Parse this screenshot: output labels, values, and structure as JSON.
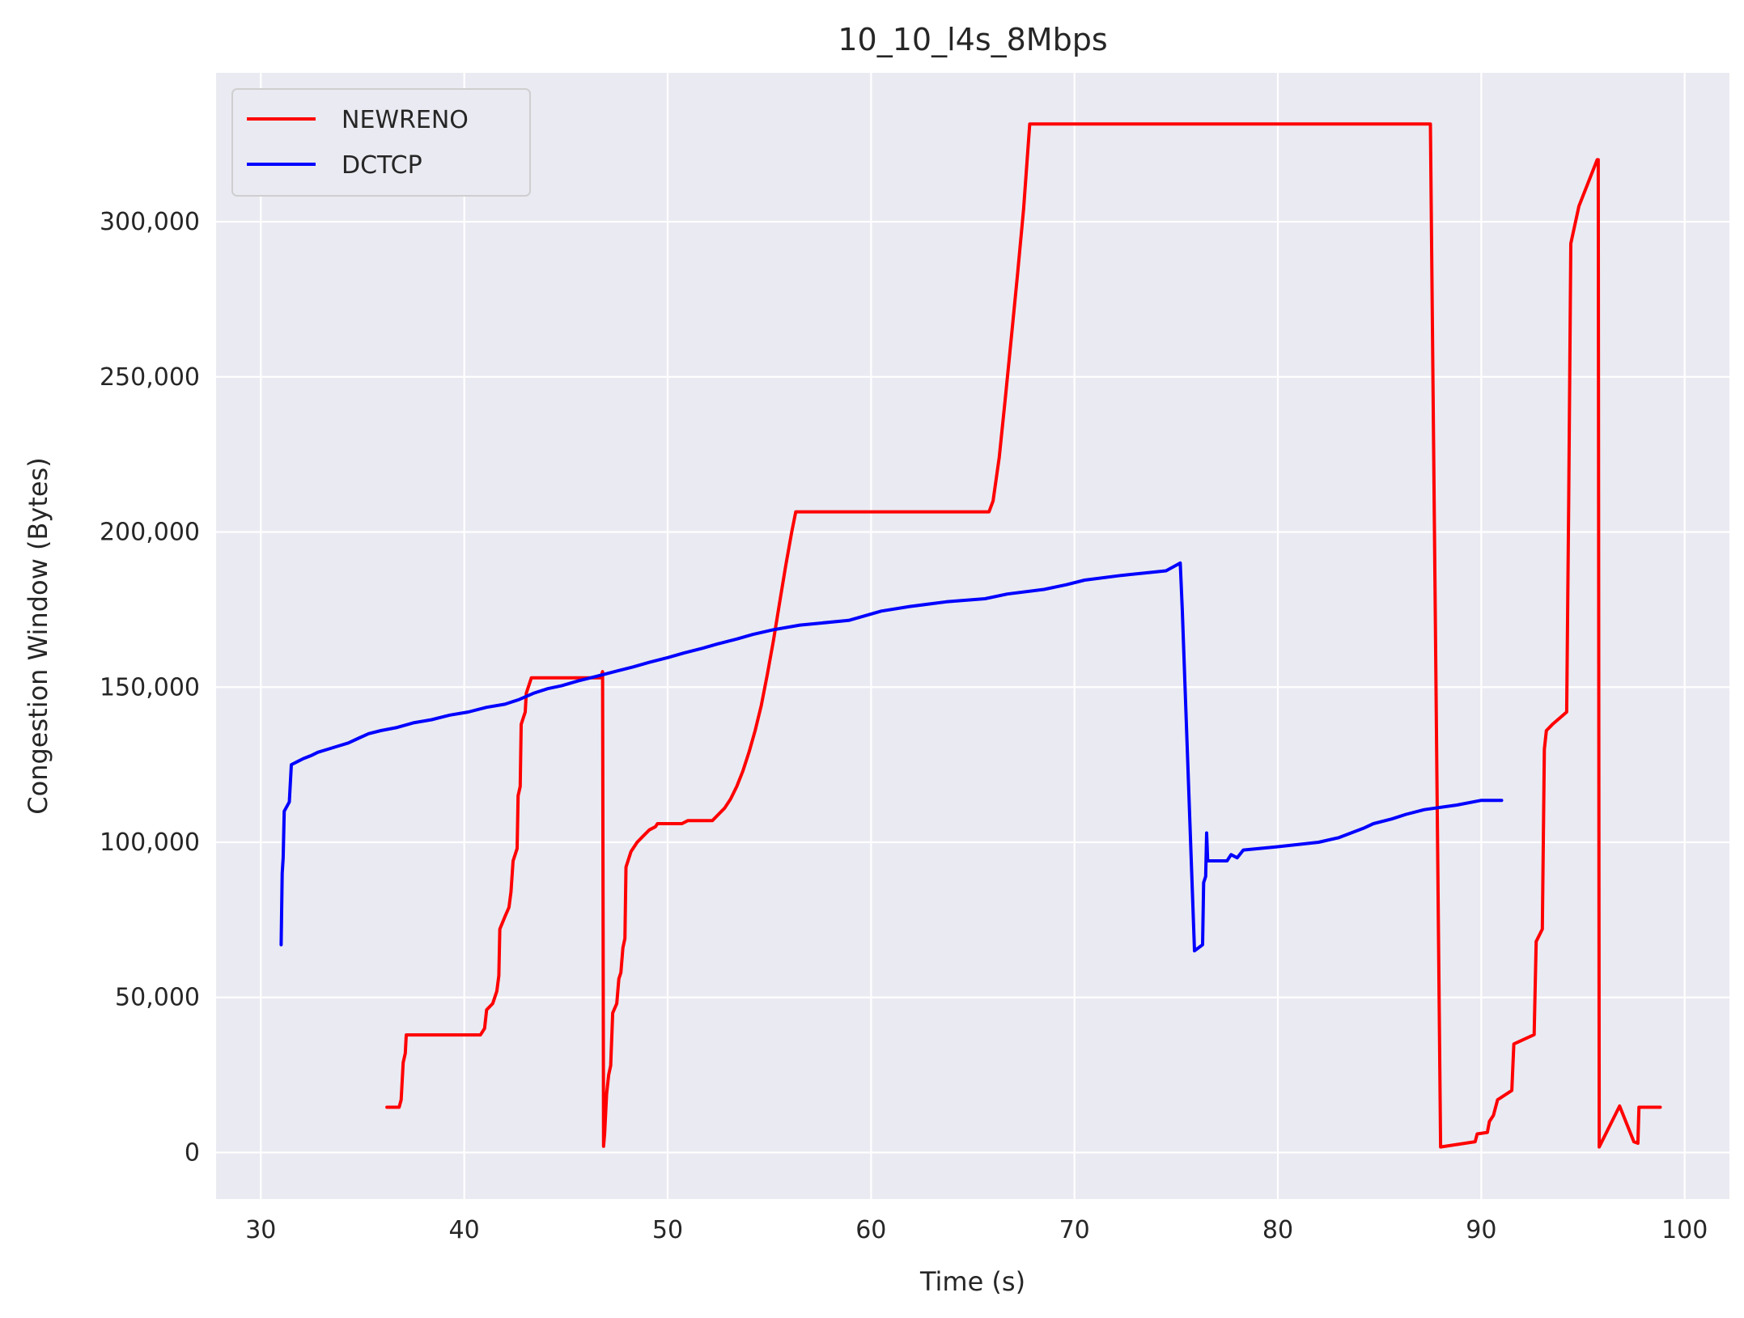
{
  "chart_data": {
    "type": "line",
    "title": "10_10_l4s_8Mbps",
    "xlabel": "Time (s)",
    "ylabel": "Congestion Window (Bytes)",
    "xlim": [
      27.8,
      102.2
    ],
    "ylim": [
      -15000,
      348000
    ],
    "xticks": [
      30,
      40,
      50,
      60,
      70,
      80,
      90,
      100
    ],
    "xtick_labels": [
      "30",
      "40",
      "50",
      "60",
      "70",
      "80",
      "90",
      "100"
    ],
    "yticks": [
      0,
      50000,
      100000,
      150000,
      200000,
      250000,
      300000
    ],
    "ytick_labels": [
      "0",
      "50,000",
      "100,000",
      "150,000",
      "200,000",
      "250,000",
      "300,000"
    ],
    "grid": true,
    "legend": "top-left",
    "background": "#eaeaf2",
    "series": [
      {
        "name": "NEWRENO",
        "color": "#ff0000",
        "points": [
          [
            36.2,
            14600
          ],
          [
            36.8,
            14600
          ],
          [
            36.9,
            17000
          ],
          [
            37.0,
            29000
          ],
          [
            37.1,
            32000
          ],
          [
            37.15,
            37900
          ],
          [
            40.8,
            37900
          ],
          [
            41.0,
            40000
          ],
          [
            41.1,
            46000
          ],
          [
            41.4,
            48000
          ],
          [
            41.6,
            52000
          ],
          [
            41.7,
            57000
          ],
          [
            41.75,
            72000
          ],
          [
            42.0,
            76000
          ],
          [
            42.2,
            79000
          ],
          [
            42.3,
            84000
          ],
          [
            42.4,
            94000
          ],
          [
            42.6,
            98000
          ],
          [
            42.65,
            115000
          ],
          [
            42.75,
            118000
          ],
          [
            42.8,
            138000
          ],
          [
            43.0,
            142000
          ],
          [
            43.05,
            148000
          ],
          [
            43.3,
            153000
          ],
          [
            46.7,
            153000
          ],
          [
            46.8,
            155000
          ],
          [
            46.85,
            2000
          ],
          [
            46.9,
            6000
          ],
          [
            47.0,
            19000
          ],
          [
            47.1,
            25000
          ],
          [
            47.2,
            28000
          ],
          [
            47.3,
            45000
          ],
          [
            47.5,
            48000
          ],
          [
            47.6,
            56000
          ],
          [
            47.7,
            58000
          ],
          [
            47.8,
            66000
          ],
          [
            47.9,
            69000
          ],
          [
            47.95,
            92000
          ],
          [
            48.2,
            97000
          ],
          [
            48.5,
            100000
          ],
          [
            48.8,
            102000
          ],
          [
            49.1,
            104000
          ],
          [
            49.4,
            105000
          ],
          [
            49.5,
            106000
          ],
          [
            50.7,
            106000
          ],
          [
            51.0,
            107000
          ],
          [
            52.2,
            107000
          ],
          [
            52.5,
            109000
          ],
          [
            52.8,
            111000
          ],
          [
            53.1,
            114000
          ],
          [
            53.4,
            118000
          ],
          [
            53.7,
            123000
          ],
          [
            54.0,
            129000
          ],
          [
            54.3,
            136000
          ],
          [
            54.6,
            144000
          ],
          [
            54.9,
            154000
          ],
          [
            55.2,
            165000
          ],
          [
            55.5,
            177000
          ],
          [
            55.8,
            189000
          ],
          [
            56.1,
            200000
          ],
          [
            56.3,
            206500
          ],
          [
            65.8,
            206500
          ],
          [
            66.0,
            210000
          ],
          [
            66.3,
            224000
          ],
          [
            66.6,
            243000
          ],
          [
            66.9,
            263000
          ],
          [
            67.2,
            283000
          ],
          [
            67.5,
            304000
          ],
          [
            67.8,
            331500
          ],
          [
            87.5,
            331500
          ],
          [
            88.0,
            1800
          ],
          [
            89.7,
            3500
          ],
          [
            89.8,
            6000
          ],
          [
            90.3,
            6500
          ],
          [
            90.4,
            10000
          ],
          [
            90.6,
            12000
          ],
          [
            90.8,
            17000
          ],
          [
            91.5,
            20000
          ],
          [
            91.6,
            35000
          ],
          [
            92.6,
            38000
          ],
          [
            92.7,
            68000
          ],
          [
            93.0,
            72000
          ],
          [
            93.1,
            130000
          ],
          [
            93.2,
            136000
          ],
          [
            93.5,
            138000
          ],
          [
            94.2,
            142000
          ],
          [
            94.3,
            210000
          ],
          [
            94.4,
            293000
          ],
          [
            94.8,
            305000
          ],
          [
            95.7,
            320000
          ],
          [
            95.75,
            320000
          ],
          [
            95.8,
            1800
          ],
          [
            96.8,
            15000
          ],
          [
            97.5,
            3500
          ],
          [
            97.7,
            3000
          ],
          [
            97.75,
            14600
          ],
          [
            98.8,
            14600
          ]
        ]
      },
      {
        "name": "DCTCP",
        "color": "#0000ff",
        "points": [
          [
            31.0,
            67000
          ],
          [
            31.05,
            90000
          ],
          [
            31.1,
            95000
          ],
          [
            31.15,
            110000
          ],
          [
            31.4,
            113000
          ],
          [
            31.5,
            125000
          ],
          [
            31.8,
            126000
          ],
          [
            32.1,
            127000
          ],
          [
            32.5,
            128000
          ],
          [
            32.8,
            129000
          ],
          [
            33.3,
            130000
          ],
          [
            33.8,
            131000
          ],
          [
            34.3,
            132000
          ],
          [
            34.8,
            133500
          ],
          [
            35.3,
            135000
          ],
          [
            35.9,
            136000
          ],
          [
            36.7,
            137000
          ],
          [
            37.5,
            138500
          ],
          [
            38.4,
            139500
          ],
          [
            39.3,
            141000
          ],
          [
            40.2,
            142000
          ],
          [
            41.1,
            143500
          ],
          [
            42.0,
            144500
          ],
          [
            42.7,
            146000
          ],
          [
            43.4,
            148000
          ],
          [
            44.1,
            149500
          ],
          [
            44.8,
            150500
          ],
          [
            45.6,
            152000
          ],
          [
            46.5,
            153500
          ],
          [
            47.4,
            155000
          ],
          [
            48.3,
            156500
          ],
          [
            49.1,
            158000
          ],
          [
            50.0,
            159500
          ],
          [
            50.8,
            161000
          ],
          [
            51.7,
            162500
          ],
          [
            52.5,
            164000
          ],
          [
            53.4,
            165500
          ],
          [
            54.2,
            167000
          ],
          [
            55.2,
            168500
          ],
          [
            56.5,
            170000
          ],
          [
            58.9,
            171500
          ],
          [
            59.7,
            173000
          ],
          [
            60.5,
            174500
          ],
          [
            61.9,
            176000
          ],
          [
            63.7,
            177500
          ],
          [
            65.6,
            178500
          ],
          [
            66.7,
            180000
          ],
          [
            68.5,
            181500
          ],
          [
            69.6,
            183000
          ],
          [
            70.5,
            184500
          ],
          [
            72.3,
            186000
          ],
          [
            74.5,
            187500
          ],
          [
            75.2,
            190000
          ],
          [
            75.3,
            175000
          ],
          [
            75.9,
            65000
          ],
          [
            76.3,
            67000
          ],
          [
            76.35,
            87000
          ],
          [
            76.45,
            89000
          ],
          [
            76.5,
            103000
          ],
          [
            76.55,
            94000
          ],
          [
            77.5,
            94000
          ],
          [
            77.7,
            96000
          ],
          [
            78.0,
            95000
          ],
          [
            78.3,
            97500
          ],
          [
            79.9,
            98500
          ],
          [
            82.0,
            100000
          ],
          [
            83.0,
            101500
          ],
          [
            83.6,
            103000
          ],
          [
            84.2,
            104500
          ],
          [
            84.7,
            106000
          ],
          [
            85.6,
            107500
          ],
          [
            86.3,
            109000
          ],
          [
            87.2,
            110500
          ],
          [
            88.8,
            112000
          ],
          [
            90.0,
            113500
          ],
          [
            91.0,
            113500
          ]
        ]
      }
    ]
  }
}
